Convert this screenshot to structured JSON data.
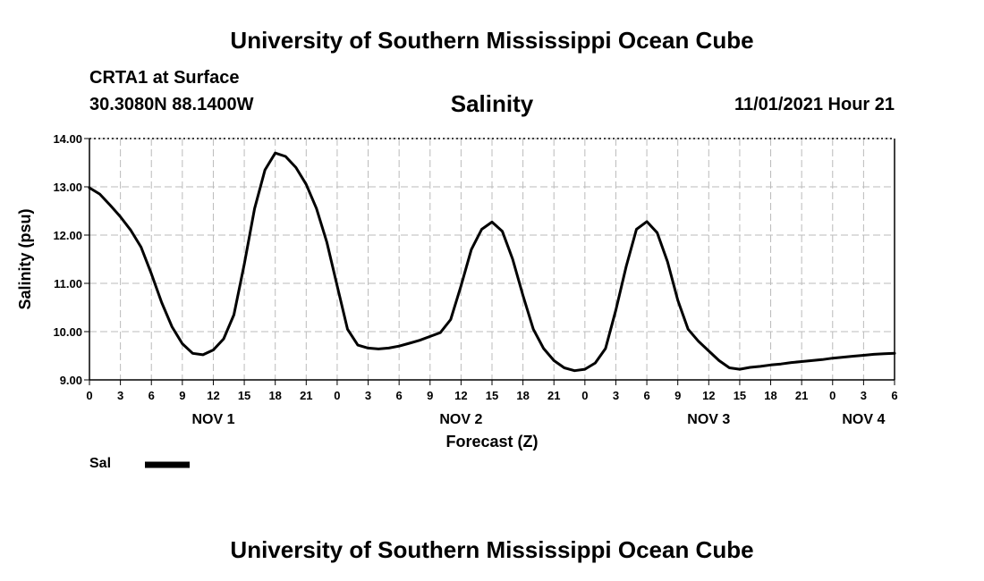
{
  "header": {
    "title": "University of Southern Mississippi Ocean Cube",
    "station": "CRTA1 at Surface",
    "location": "30.3080N  88.1400W",
    "variable": "Salinity",
    "datetime": "11/01/2021 Hour 21"
  },
  "footer": {
    "title": "University of Southern Mississippi Ocean Cube"
  },
  "legend": {
    "label": "Sal",
    "color": "#000000"
  },
  "chart_data": {
    "type": "line",
    "title": "Salinity",
    "xlabel": "Forecast (Z)",
    "ylabel": "Salinity (psu)",
    "xlim": [
      0,
      78
    ],
    "ylim": [
      9.0,
      14.0
    ],
    "grid": true,
    "y_ticks": [
      "9.00",
      "10.00",
      "11.00",
      "12.00",
      "13.00",
      "14.00"
    ],
    "x_tick_labels": [
      "0",
      "3",
      "6",
      "9",
      "12",
      "15",
      "18",
      "21",
      "0",
      "3",
      "6",
      "9",
      "12",
      "15",
      "18",
      "21",
      "0",
      "3",
      "6",
      "9",
      "12",
      "15",
      "18",
      "21",
      "0",
      "3",
      "6"
    ],
    "day_labels": [
      {
        "label": "NOV 1",
        "hour": 12
      },
      {
        "label": "NOV 2",
        "hour": 36
      },
      {
        "label": "NOV 3",
        "hour": 60
      },
      {
        "label": "NOV 4",
        "hour": 75
      }
    ],
    "series": [
      {
        "name": "Sal",
        "x": [
          0,
          1,
          2,
          3,
          4,
          5,
          6,
          7,
          8,
          9,
          10,
          11,
          12,
          13,
          14,
          15,
          16,
          17,
          18,
          19,
          20,
          21,
          22,
          23,
          24,
          25,
          26,
          27,
          28,
          29,
          30,
          31,
          32,
          33,
          34,
          35,
          36,
          37,
          38,
          39,
          40,
          41,
          42,
          43,
          44,
          45,
          46,
          47,
          48,
          49,
          50,
          51,
          52,
          53,
          54,
          55,
          56,
          57,
          58,
          59,
          60,
          61,
          62,
          63,
          64,
          65,
          66,
          67,
          68,
          69,
          70,
          71,
          72,
          73,
          74,
          75,
          76,
          77,
          78
        ],
        "values": [
          12.98,
          12.85,
          12.62,
          12.38,
          12.1,
          11.75,
          11.2,
          10.6,
          10.1,
          9.75,
          9.55,
          9.52,
          9.62,
          9.85,
          10.35,
          11.4,
          12.55,
          13.35,
          13.7,
          13.63,
          13.4,
          13.05,
          12.55,
          11.85,
          10.95,
          10.05,
          9.72,
          9.66,
          9.64,
          9.66,
          9.7,
          9.76,
          9.82,
          9.9,
          9.98,
          10.25,
          10.95,
          11.7,
          12.12,
          12.27,
          12.08,
          11.5,
          10.75,
          10.05,
          9.65,
          9.4,
          9.25,
          9.19,
          9.22,
          9.35,
          9.65,
          10.45,
          11.35,
          12.12,
          12.28,
          12.05,
          11.45,
          10.65,
          10.05,
          9.8,
          9.6,
          9.4,
          9.25,
          9.22,
          9.26,
          9.28,
          9.31,
          9.33,
          9.36,
          9.38,
          9.4,
          9.42,
          9.45,
          9.47,
          9.49,
          9.51,
          9.53,
          9.54,
          9.55
        ]
      }
    ]
  }
}
